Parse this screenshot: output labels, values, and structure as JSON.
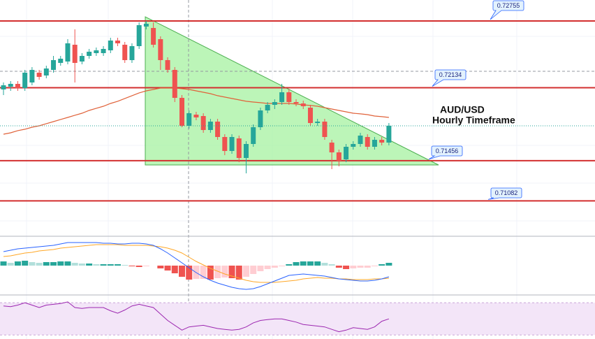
{
  "chart_data": [
    {
      "type": "candlestick",
      "annotations": [
        "AUD/USD",
        "Hourly Timeframe"
      ],
      "open": [
        0.72118,
        0.72144,
        0.7217,
        0.72131,
        0.72183,
        0.72274,
        0.72248,
        0.723,
        0.72365,
        0.72378,
        0.72534,
        0.72378,
        0.7243,
        0.72456,
        0.72456,
        0.72482,
        0.72573,
        0.72534,
        0.72391,
        0.72521,
        0.72703,
        0.7269,
        0.72586,
        0.72391,
        0.723,
        0.7204,
        0.7178,
        0.71884,
        0.71871,
        0.71741,
        0.71819,
        0.71676,
        0.71546,
        0.71663,
        0.71481,
        0.71611,
        0.71767,
        0.71923,
        0.71975,
        0.72001,
        0.72092,
        0.72001,
        0.71988,
        0.71949,
        0.71806,
        0.71819,
        0.71624,
        0.71533,
        0.71468,
        0.71585,
        0.71611,
        0.71676,
        0.71585,
        0.7165,
        0.71624
      ],
      "high": [
        0.72183,
        0.72196,
        0.72196,
        0.723,
        0.72326,
        0.723,
        0.72339,
        0.7243,
        0.7243,
        0.72586,
        0.72677,
        0.72456,
        0.72495,
        0.72508,
        0.72521,
        0.72599,
        0.72599,
        0.7256,
        0.72547,
        0.72742,
        0.72755,
        0.72742,
        0.72612,
        0.72417,
        0.72326,
        0.72066,
        0.71923,
        0.7191,
        0.71897,
        0.71845,
        0.71845,
        0.71702,
        0.71702,
        0.71689,
        0.71637,
        0.71793,
        0.71949,
        0.72001,
        0.72027,
        0.7217,
        0.72118,
        0.72027,
        0.72014,
        0.71975,
        0.71845,
        0.71845,
        0.7165,
        0.71559,
        0.71611,
        0.71637,
        0.71715,
        0.71702,
        0.71676,
        0.71676,
        0.71806
      ],
      "low": [
        0.72066,
        0.72105,
        0.72105,
        0.72105,
        0.72157,
        0.72209,
        0.72222,
        0.72274,
        0.72339,
        0.72352,
        0.72183,
        0.72352,
        0.72404,
        0.7243,
        0.7243,
        0.72456,
        0.72521,
        0.72365,
        0.72365,
        0.72495,
        0.72677,
        0.72508,
        0.723,
        0.72274,
        0.72001,
        0.71767,
        0.71754,
        0.71832,
        0.71715,
        0.71715,
        0.7165,
        0.71507,
        0.7152,
        0.71442,
        0.71338,
        0.71585,
        0.71741,
        0.71897,
        0.71936,
        0.71975,
        0.71975,
        0.71962,
        0.71936,
        0.7178,
        0.7178,
        0.7165,
        0.71377,
        0.71403,
        0.71442,
        0.71559,
        0.71585,
        0.71559,
        0.71559,
        0.71598,
        0.71598
      ],
      "close": [
        0.72157,
        0.7217,
        0.72131,
        0.72274,
        0.723,
        0.72235,
        0.72313,
        0.72391,
        0.72404,
        0.72547,
        0.72365,
        0.7243,
        0.72469,
        0.72482,
        0.72495,
        0.72573,
        0.72547,
        0.72391,
        0.72521,
        0.72716,
        0.72729,
        0.72534,
        0.72391,
        0.723,
        0.7204,
        0.7178,
        0.71897,
        0.71858,
        0.71741,
        0.71819,
        0.71676,
        0.71546,
        0.71676,
        0.71481,
        0.71611,
        0.71767,
        0.71923,
        0.71975,
        0.72001,
        0.72092,
        0.72001,
        0.71988,
        0.71962,
        0.71806,
        0.71819,
        0.71676,
        0.71533,
        0.71455,
        0.71585,
        0.71611,
        0.71689,
        0.71585,
        0.7165,
        0.71624,
        0.7178
      ],
      "up_color": "#26a69a",
      "down_color": "#ef5350",
      "moving_average": {
        "color": "#e0623a",
        "values": [
          0.71702,
          0.71715,
          0.71735,
          0.71748,
          0.71767,
          0.7178,
          0.718,
          0.71819,
          0.71839,
          0.71858,
          0.71878,
          0.71897,
          0.71923,
          0.71943,
          0.71962,
          0.71988,
          0.72008,
          0.72034,
          0.7206,
          0.72086,
          0.72105,
          0.72118,
          0.72131,
          0.72131,
          0.72131,
          0.72125,
          0.72118,
          0.72105,
          0.72092,
          0.72079,
          0.7206,
          0.72047,
          0.72034,
          0.72021,
          0.72008,
          0.72001,
          0.71995,
          0.71988,
          0.71988,
          0.71988,
          0.71988,
          0.71982,
          0.71975,
          0.71969,
          0.71962,
          0.71949,
          0.71936,
          0.71923,
          0.7191,
          0.71897,
          0.71891,
          0.71884,
          0.71871,
          0.71865,
          0.71858
        ]
      },
      "levels": [
        0.72755,
        0.72134,
        0.71456,
        0.71082
      ],
      "level_color": "#d32f2f",
      "ylim": [
        0.707725,
        0.7295
      ]
    },
    {
      "type": "macd",
      "ylim": [
        -42,
        42
      ],
      "histogram": {
        "colors": [
          "#26a69a",
          "#b2dfdb",
          "#ffcdd2",
          "#ef5350"
        ],
        "values": [
          6,
          4,
          6,
          7,
          5,
          4,
          5,
          5,
          6,
          6,
          4,
          3,
          3,
          2,
          2,
          2,
          2,
          1,
          -1,
          -2,
          -1,
          0,
          -4,
          -7,
          -11,
          -16,
          -20,
          -19,
          -19,
          -20,
          -18,
          -17,
          -18,
          -20,
          -16,
          -12,
          -8,
          -5,
          -3,
          -1,
          2,
          5,
          6,
          6,
          6,
          4,
          2,
          -3,
          -5,
          -4,
          -3,
          -3,
          -1,
          2,
          4
        ]
      },
      "macd_line": {
        "color": "#2962ff",
        "values": [
          20,
          22,
          24,
          25,
          26,
          27,
          28,
          29,
          31,
          33,
          33,
          33,
          33,
          33,
          32,
          32,
          31,
          31,
          32,
          32,
          31,
          29,
          24,
          18,
          11,
          4,
          -3,
          -10,
          -16,
          -21,
          -25,
          -28,
          -31,
          -33,
          -34,
          -33,
          -30,
          -26,
          -22,
          -18,
          -14,
          -13,
          -12,
          -13,
          -14,
          -15,
          -17,
          -19,
          -20,
          -21,
          -22,
          -22,
          -21,
          -19,
          -16
        ]
      },
      "signal_line": {
        "color": "#ffa726",
        "values": [
          13,
          14,
          16,
          18,
          19,
          21,
          22,
          23,
          25,
          26,
          27,
          28,
          29,
          30,
          30,
          30,
          30,
          29,
          29,
          29,
          29,
          28,
          27,
          25,
          22,
          18,
          12,
          6,
          1,
          -4,
          -8,
          -12,
          -15,
          -18,
          -21,
          -23,
          -24,
          -24,
          -24,
          -23,
          -22,
          -21,
          -19,
          -18,
          -17,
          -18,
          -18,
          -19,
          -19,
          -20,
          -20,
          -20,
          -19,
          -19,
          -18
        ]
      }
    },
    {
      "type": "rsi",
      "ylim": [
        25,
        77
      ],
      "bands": [
        30,
        70
      ],
      "band_color": "#f3e5f8",
      "color": "#9c27b0",
      "values": [
        66,
        65,
        67,
        70,
        67,
        64,
        67,
        68,
        69,
        71,
        64,
        63,
        64,
        64,
        64,
        60,
        57,
        61,
        66,
        68,
        66,
        64,
        56,
        48,
        42,
        36,
        40,
        41,
        42,
        40,
        38,
        37,
        36,
        37,
        40,
        45,
        48,
        49,
        50,
        50,
        48,
        46,
        43,
        42,
        41,
        40,
        37,
        34,
        36,
        39,
        38,
        37,
        40,
        47,
        50
      ]
    }
  ]
}
